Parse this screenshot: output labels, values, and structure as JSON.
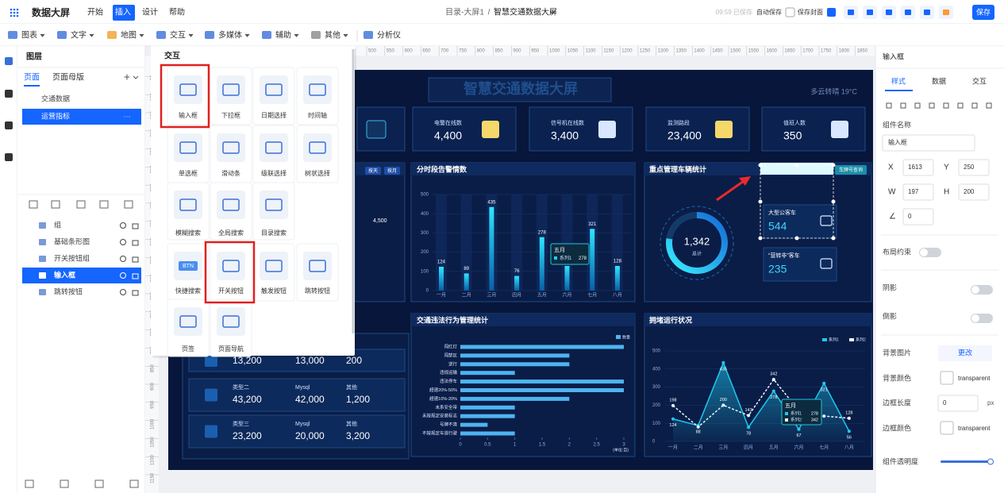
{
  "topbar": {
    "logo": "数据大屏",
    "menus": [
      "开始",
      "插入",
      "设计",
      "帮助"
    ],
    "breadcrumb": "目录-大屏1",
    "separator": "/",
    "project": "智慧交通数据大屏",
    "save_status": "09:59 已保存",
    "auto_save": "自动保存",
    "save_cover": "保存封面",
    "save": "保存"
  },
  "toolbar": [
    "图表",
    "文字",
    "地图",
    "交互",
    "多媒体",
    "辅助",
    "其他",
    "分析仪"
  ],
  "layers_panel": {
    "title": "图层",
    "tabs": [
      "页面",
      "页面母版"
    ],
    "add": "+",
    "pages": [
      "交通数据",
      "运营指标"
    ],
    "more": "···",
    "layers": [
      "组",
      "基础条形图",
      "开关按钮组",
      "输入框",
      "跳转按钮"
    ]
  },
  "rulers": {
    "top": [
      500,
      550,
      600,
      650,
      700,
      750,
      800,
      850,
      900,
      950,
      1000,
      1050,
      1100,
      1150,
      1200,
      1250,
      1300,
      1350,
      1400,
      1450,
      1500,
      1550,
      1600,
      1650,
      1700,
      1750,
      1800,
      1850
    ],
    "left": [
      50,
      100,
      150,
      200,
      250,
      300,
      350,
      400,
      450,
      500,
      550,
      600,
      650,
      700,
      750,
      800,
      850,
      900,
      950,
      1000,
      1050,
      1100,
      1150
    ]
  },
  "popup": {
    "title": "交互",
    "items": [
      "输入框",
      "下拉框",
      "日期选择",
      "时间轴",
      "单选框",
      "滑动条",
      "级联选择",
      "树状选择",
      "模糊搜索",
      "全局搜索",
      "目录搜索",
      "快捷搜索",
      "开关按钮",
      "触发按钮",
      "跳转按钮",
      "页签",
      "页面导航"
    ],
    "btn_icon": "BTN"
  },
  "dashboard": {
    "title": "智慧交通数据大屏",
    "weather": "多云转晴 19°C",
    "kpis": [
      {
        "label": "电警在线数",
        "value": "4,400"
      },
      {
        "label": "信号机在线数",
        "value": "3,400"
      },
      {
        "label": "监测路段",
        "value": "23,400"
      },
      {
        "label": "值班人数",
        "value": "350"
      }
    ],
    "left_panel": {
      "buttons": [
        "按天",
        "按月"
      ],
      "value": "4,500"
    },
    "alarm_chart": {
      "type": "bar",
      "title": "分时段告警情数",
      "categories": [
        "一月",
        "二月",
        "三月",
        "四月",
        "五月",
        "六月",
        "七月",
        "八月"
      ],
      "values": [
        124,
        89,
        435,
        76,
        278,
        128,
        321,
        128
      ],
      "ylim": [
        0,
        500
      ],
      "yticks": [
        0,
        100,
        200,
        300,
        400,
        500
      ],
      "color": "#1fd2f0",
      "tooltip": {
        "category": "五月",
        "series": "系列1",
        "value": 278
      }
    },
    "vehicle_panel": {
      "title": "重点管理车辆统计",
      "query": "车牌号查询",
      "total": "1,342",
      "total_label": "总计",
      "cards": [
        {
          "label": "大型公客车",
          "value": "544"
        },
        {
          "label": "“营转非”客车",
          "value": "235"
        }
      ]
    },
    "violation_chart": {
      "type": "bar",
      "title": "交通违法行为管理统计",
      "legend": "数量",
      "categories": [
        "闯红灯",
        "闯禁区",
        "逆行",
        "违规运输",
        "违法停车",
        "超速20%-50%",
        "超速10%-20%",
        "未系安全带",
        "未按规定安装标志",
        "号牌不清",
        "不按规定车道行驶"
      ],
      "values": [
        3,
        2,
        2,
        1,
        3,
        3,
        2,
        1,
        1,
        0.5,
        1
      ],
      "xlim": [
        0,
        3
      ],
      "xticks": [
        0,
        0.5,
        1,
        1.5,
        2,
        2.5,
        3
      ],
      "unit": "(单位:百)",
      "color": "#4fb3f0"
    },
    "congestion_chart": {
      "type": "line",
      "title": "拥堵运行状况",
      "categories": [
        "一月",
        "二月",
        "三月",
        "四月",
        "五月",
        "六月",
        "七月",
        "八月"
      ],
      "ylim": [
        0,
        500
      ],
      "yticks": [
        0,
        100,
        200,
        300,
        400,
        500
      ],
      "series": [
        {
          "name": "系列1",
          "color": "#1fc8ee",
          "values": [
            124,
            88,
            435,
            78,
            278,
            67,
            321,
            56
          ]
        },
        {
          "name": "系列2",
          "color": "#e8f6ff",
          "values": [
            198,
            80,
            200,
            143,
            342,
            170,
            140,
            128
          ],
          "value_labels": [
            "198",
            null,
            "200",
            "143",
            "342",
            null,
            null,
            "128"
          ]
        }
      ],
      "tooltip": {
        "category": "五月",
        "rows": [
          {
            "series": "系列1",
            "value": 278
          },
          {
            "series": "系列2",
            "value": 342
          }
        ]
      }
    },
    "rows": [
      {
        "values": [
          "13,200",
          "13,000",
          "200"
        ]
      },
      {
        "labels": [
          "类型二",
          "Mysql",
          "其他"
        ],
        "values": [
          "43,200",
          "42,000",
          "1,200"
        ]
      },
      {
        "labels": [
          "类型三",
          "Mysql",
          "其他"
        ],
        "values": [
          "23,200",
          "20,000",
          "3,200"
        ]
      }
    ]
  },
  "properties": {
    "title": "输入框",
    "tabs": [
      "样式",
      "数据",
      "交互"
    ],
    "name_label": "组件名称",
    "name_value": "输入框",
    "x_label": "X",
    "x": "1613",
    "y_label": "Y",
    "y": "250",
    "w_label": "W",
    "w": "197",
    "h_label": "H",
    "h": "200",
    "angle_label": "∠",
    "angle": "0",
    "layout": "布局约束",
    "shadow": "阴影",
    "reflection": "倒影",
    "bg_image": "背景图片",
    "change": "更改",
    "bg_color": "背景颜色",
    "bg_color_value": "transparent",
    "border_width": "边框长度",
    "border_width_value": "0",
    "border_unit": "px",
    "border_color": "边框颜色",
    "border_color_value": "transparent",
    "opacity": "组件透明度"
  }
}
